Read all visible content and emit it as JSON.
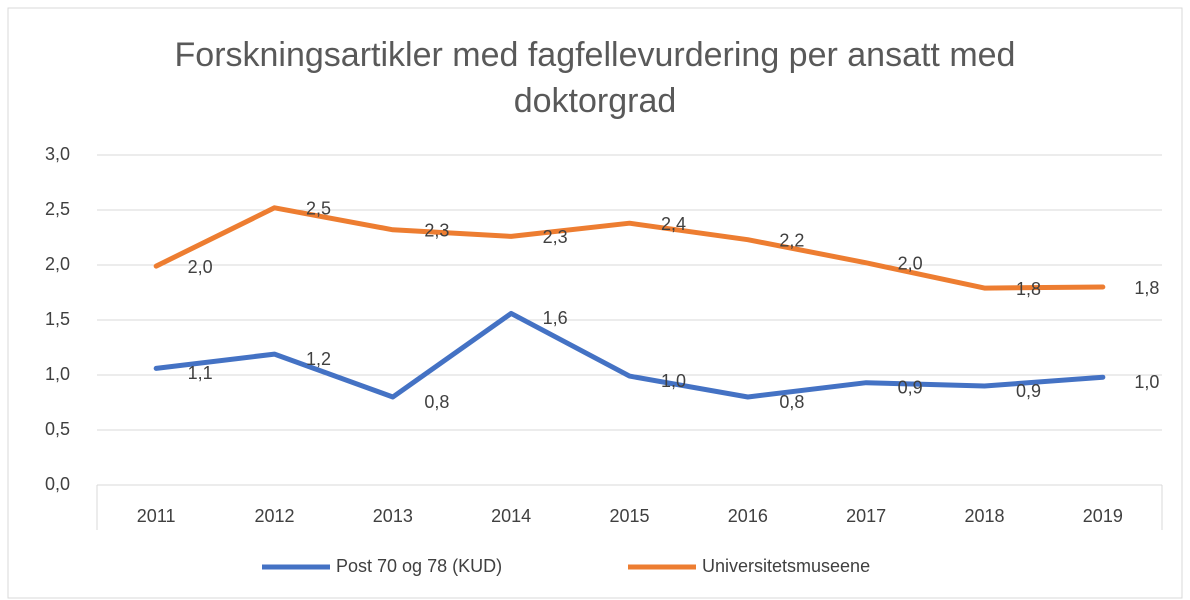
{
  "chart_data": {
    "type": "line",
    "title": "Forskningsartikler med fagfellevurdering per ansatt med doktorgrad",
    "categories": [
      "2011",
      "2012",
      "2013",
      "2014",
      "2015",
      "2016",
      "2017",
      "2018",
      "2019"
    ],
    "series": [
      {
        "name": "Post 70 og 78 (KUD)",
        "color": "#4472c4",
        "values": [
          1.06,
          1.19,
          0.8,
          1.56,
          0.99,
          0.8,
          0.93,
          0.9,
          0.98
        ],
        "value_labels": [
          "1,1",
          "1,2",
          "0,8",
          "1,6",
          "1,0",
          "0,8",
          "0,9",
          "0,9",
          "1,0"
        ]
      },
      {
        "name": "Universitetsmuseene",
        "color": "#ed7d31",
        "values": [
          1.99,
          2.52,
          2.32,
          2.26,
          2.38,
          2.23,
          2.02,
          1.79,
          1.8
        ],
        "value_labels": [
          "2,0",
          "2,5",
          "2,3",
          "2,3",
          "2,4",
          "2,2",
          "2,0",
          "1,8",
          "1,8"
        ]
      }
    ],
    "ylim": [
      0,
      3
    ],
    "yticks": [
      {
        "value": 0,
        "label": "0,0"
      },
      {
        "value": 0.5,
        "label": "0,5"
      },
      {
        "value": 1,
        "label": "1,0"
      },
      {
        "value": 1.5,
        "label": "1,5"
      },
      {
        "value": 2,
        "label": "2,0"
      },
      {
        "value": 2.5,
        "label": "2,5"
      },
      {
        "value": 3,
        "label": "3,0"
      }
    ],
    "grid": true,
    "legend": "bottom"
  }
}
